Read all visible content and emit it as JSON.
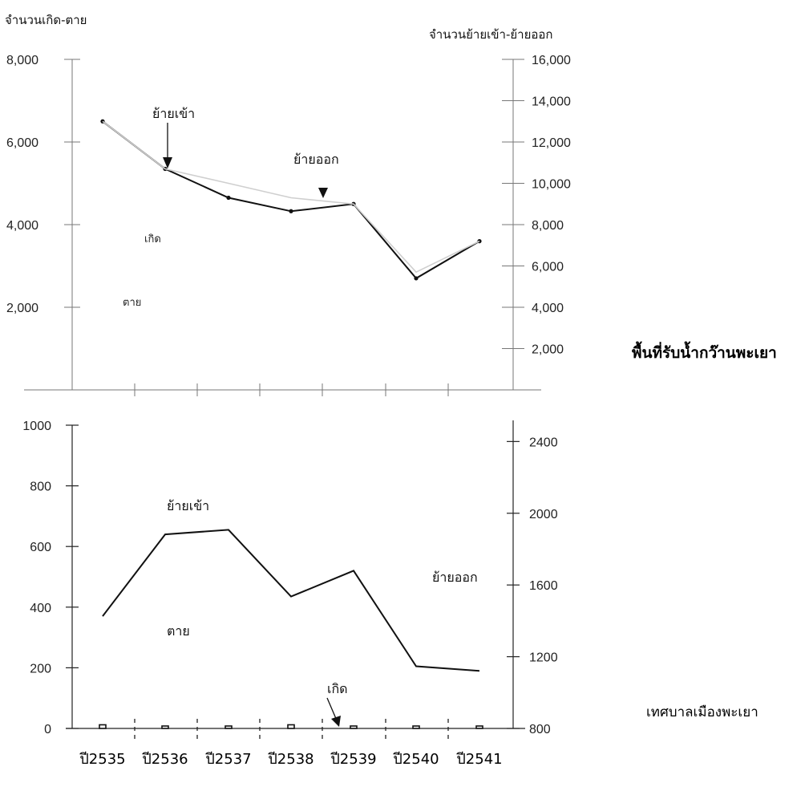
{
  "side_titles": {
    "top": "พื้นที่รับน้ำกว๊านพะเยา",
    "bottom": "เทศบาลเมืองพะเยา"
  },
  "x_tick_labels": [
    "ปี2535",
    "ปี2536",
    "ปี2537",
    "ปี2538",
    "ปี2539",
    "ปี2540",
    "ปี2541"
  ],
  "chart_data": [
    {
      "type": "line",
      "name": "top",
      "ylabel": "จำนวนเกิด-ตาย",
      "y2label": "จำนวนย้ายเข้า-ย้ายออก",
      "ylim": [
        0,
        8000
      ],
      "y2lim": [
        0,
        16000
      ],
      "yticks": [
        "2,000",
        "4,000",
        "6,000",
        "8,000"
      ],
      "y2ticks": [
        "2,000",
        "4,000",
        "6,000",
        "8,000",
        "10,000",
        "12,000",
        "14,000",
        "16,000"
      ],
      "x": [
        "ปี2535",
        "ปี2536",
        "ปี2537",
        "ปี2538",
        "ปี2539",
        "ปี2540",
        "ปี2541"
      ],
      "series": [
        {
          "name": "ย้ายเข้า",
          "axis": "right",
          "style": "dark",
          "values": [
            13000,
            10700,
            9300,
            8650,
            9000,
            5400,
            7200
          ]
        },
        {
          "name": "ย้ายออก",
          "axis": "right",
          "style": "light",
          "values": [
            13000,
            10700,
            10000,
            9300,
            9000,
            5700,
            7200
          ]
        }
      ],
      "annotations": [
        {
          "text": "ย้ายเข้า",
          "arrow": true
        },
        {
          "text": "ย้ายออก",
          "arrow": true
        },
        {
          "text": "เกิด",
          "arrow": false
        },
        {
          "text": "ตาย",
          "arrow": false
        }
      ]
    },
    {
      "type": "line",
      "name": "bottom",
      "ylim": [
        0,
        1000
      ],
      "y2lim": [
        800,
        2500
      ],
      "yticks": [
        "0",
        "200",
        "400",
        "600",
        "800",
        "1000"
      ],
      "y2ticks": [
        "800",
        "1200",
        "1600",
        "2000",
        "2400"
      ],
      "x": [
        "ปี2535",
        "ปี2536",
        "ปี2537",
        "ปี2538",
        "ปี2539",
        "ปี2540",
        "ปี2541"
      ],
      "series": [
        {
          "name": "ย้ายเข้า",
          "axis": "left",
          "values": [
            370,
            640,
            655,
            435,
            520,
            205,
            190
          ]
        },
        {
          "name": "เกิด",
          "axis": "left",
          "style": "bars",
          "values": [
            12,
            8,
            8,
            12,
            8,
            8,
            8
          ]
        }
      ],
      "annotations": [
        {
          "text": "ย้ายเข้า",
          "arrow": false
        },
        {
          "text": "ย้ายออก",
          "arrow": false
        },
        {
          "text": "ตาย",
          "arrow": false
        },
        {
          "text": "เกิด",
          "arrow": true
        }
      ]
    }
  ]
}
